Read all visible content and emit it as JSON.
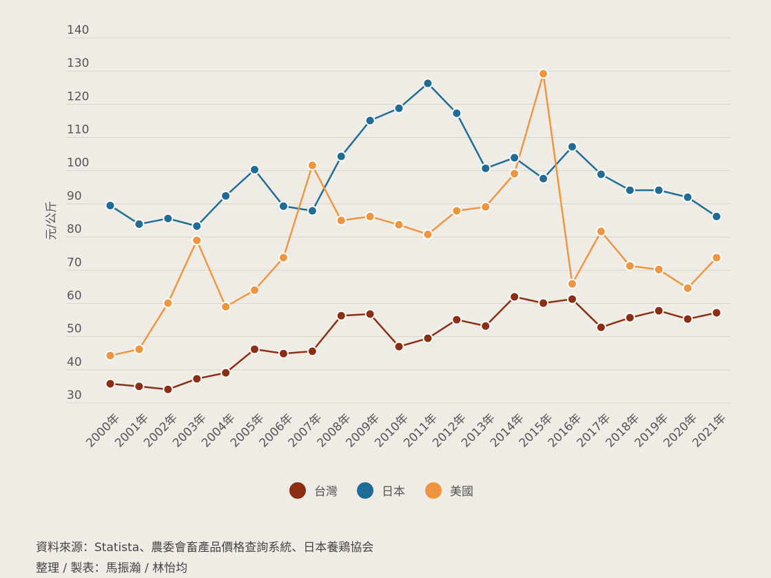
{
  "chart_data": {
    "type": "line",
    "ylabel": "元/公斤",
    "categories": [
      "2000年",
      "2001年",
      "2002年",
      "2003年",
      "2004年",
      "2005年",
      "2006年",
      "2007年",
      "2008年",
      "2009年",
      "2010年",
      "2011年",
      "2012年",
      "2013年",
      "2014年",
      "2015年",
      "2016年",
      "2017年",
      "2018年",
      "2019年",
      "2020年",
      "2021年"
    ],
    "series": [
      {
        "name": "台灣",
        "color": "#8b2e14",
        "values": [
          35.8,
          35,
          34.1,
          37.3,
          39.1,
          46.2,
          44.9,
          45.6,
          56.3,
          56.8,
          47,
          49.5,
          55.1,
          53.2,
          62,
          60.1,
          61.3,
          52.8,
          55.7,
          57.8,
          55.3,
          57.2
        ]
      },
      {
        "name": "日本",
        "color": "#1f6d96",
        "values": [
          89.5,
          83.9,
          85.6,
          83.3,
          92.4,
          100.3,
          89.3,
          87.9,
          104.3,
          115.1,
          118.8,
          126.3,
          117.3,
          100.7,
          103.9,
          97.6,
          107.2,
          98.9,
          94.1,
          94.1,
          92,
          86.2
        ]
      },
      {
        "name": "美國",
        "color": "#f0953f",
        "values": [
          44.3,
          46.2,
          60.1,
          79,
          59,
          64,
          73.8,
          101.6,
          85,
          86.2,
          83.7,
          80.8,
          87.9,
          89.1,
          99.1,
          129.2,
          65.9,
          81.7,
          71.3,
          70.2,
          64.6,
          73.8
        ]
      }
    ],
    "ylim": [
      30,
      140
    ],
    "yticks": [
      30,
      40,
      50,
      60,
      70,
      80,
      90,
      100,
      110,
      120,
      130,
      140
    ],
    "grid": true,
    "legend": "bottom"
  },
  "footer": {
    "source": "資料來源：Statista、農委會畜產品價格查詢系統、日本養鶏協会",
    "credit": "整理 / 製表：馬振瀚 / 林怡均"
  }
}
